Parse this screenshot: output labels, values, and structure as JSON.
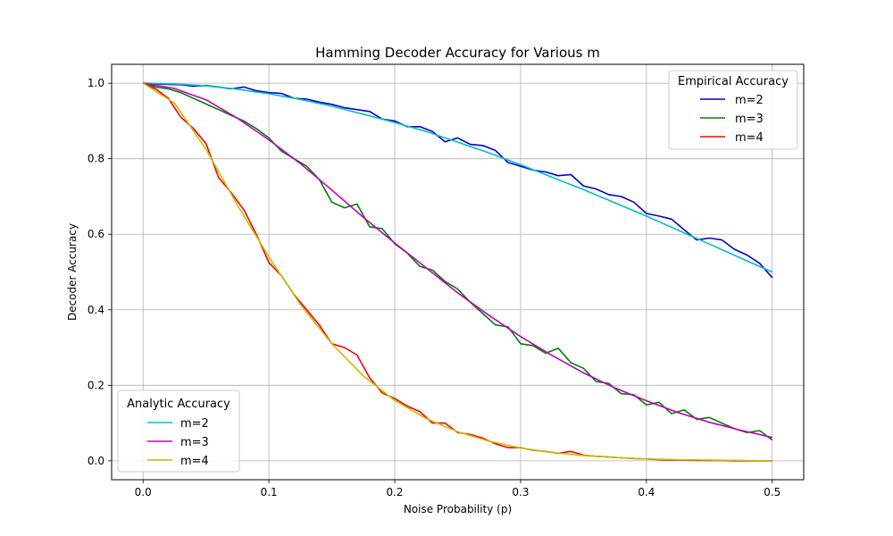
{
  "chart_data": {
    "type": "line",
    "title": "Hamming Decoder Accuracy for Various m",
    "xlabel": "Noise Probability (p)",
    "ylabel": "Decoder Accuracy",
    "xlim": [
      -0.025,
      0.525
    ],
    "ylim": [
      -0.05,
      1.05
    ],
    "x_ticks": [
      0.0,
      0.1,
      0.2,
      0.3,
      0.4,
      0.5
    ],
    "y_ticks": [
      0.0,
      0.2,
      0.4,
      0.6,
      0.8,
      1.0
    ],
    "x_tick_labels": [
      "0.0",
      "0.1",
      "0.2",
      "0.3",
      "0.4",
      "0.5"
    ],
    "y_tick_labels": [
      "0.0",
      "0.2",
      "0.4",
      "0.6",
      "0.8",
      "1.0"
    ],
    "grid": true,
    "legends": [
      {
        "title": "Empirical Accuracy",
        "placement": "upper-right",
        "entries": [
          {
            "label": "m=2",
            "color": "#0000cc"
          },
          {
            "label": "m=3",
            "color": "#008000"
          },
          {
            "label": "m=4",
            "color": "#ff0000"
          }
        ]
      },
      {
        "title": "Analytic Accuracy",
        "placement": "lower-left",
        "entries": [
          {
            "label": "m=2",
            "color": "#00bfbf"
          },
          {
            "label": "m=3",
            "color": "#bf00bf"
          },
          {
            "label": "m=4",
            "color": "#bfbf00"
          }
        ]
      }
    ],
    "series": [
      {
        "label": "m=2",
        "kind": "empirical",
        "color": "#0000cc",
        "x": [
          0.0,
          0.01,
          0.02,
          0.03,
          0.04,
          0.05,
          0.06,
          0.07,
          0.08,
          0.09,
          0.1,
          0.11,
          0.12,
          0.13,
          0.14,
          0.15,
          0.16,
          0.17,
          0.18,
          0.19,
          0.2,
          0.21,
          0.22,
          0.23,
          0.24,
          0.25,
          0.26,
          0.27,
          0.28,
          0.29,
          0.3,
          0.31,
          0.32,
          0.33,
          0.34,
          0.35,
          0.36,
          0.37,
          0.38,
          0.39,
          0.4,
          0.41,
          0.42,
          0.43,
          0.44,
          0.45,
          0.46,
          0.47,
          0.48,
          0.49,
          0.5
        ],
        "y": [
          1.0,
          0.998,
          0.997,
          0.996,
          0.992,
          0.994,
          0.99,
          0.985,
          0.99,
          0.98,
          0.975,
          0.973,
          0.96,
          0.958,
          0.95,
          0.944,
          0.935,
          0.93,
          0.925,
          0.905,
          0.9,
          0.885,
          0.885,
          0.872,
          0.845,
          0.855,
          0.838,
          0.835,
          0.822,
          0.79,
          0.78,
          0.77,
          0.765,
          0.755,
          0.758,
          0.728,
          0.72,
          0.705,
          0.7,
          0.685,
          0.655,
          0.648,
          0.64,
          0.612,
          0.585,
          0.59,
          0.585,
          0.56,
          0.545,
          0.523,
          0.485
        ]
      },
      {
        "label": "m=3",
        "kind": "empirical",
        "color": "#008000",
        "x": [
          0.0,
          0.01,
          0.02,
          0.03,
          0.04,
          0.05,
          0.06,
          0.07,
          0.08,
          0.09,
          0.1,
          0.11,
          0.12,
          0.13,
          0.14,
          0.15,
          0.16,
          0.17,
          0.18,
          0.19,
          0.2,
          0.21,
          0.22,
          0.23,
          0.24,
          0.25,
          0.26,
          0.27,
          0.28,
          0.29,
          0.3,
          0.31,
          0.32,
          0.33,
          0.34,
          0.35,
          0.36,
          0.37,
          0.38,
          0.39,
          0.4,
          0.41,
          0.42,
          0.43,
          0.44,
          0.45,
          0.46,
          0.47,
          0.48,
          0.49,
          0.5
        ],
        "y": [
          1.0,
          0.99,
          0.985,
          0.975,
          0.96,
          0.945,
          0.93,
          0.915,
          0.9,
          0.88,
          0.855,
          0.82,
          0.8,
          0.78,
          0.745,
          0.685,
          0.67,
          0.68,
          0.62,
          0.615,
          0.575,
          0.55,
          0.515,
          0.505,
          0.475,
          0.455,
          0.42,
          0.39,
          0.36,
          0.355,
          0.31,
          0.305,
          0.285,
          0.298,
          0.26,
          0.245,
          0.21,
          0.205,
          0.178,
          0.175,
          0.148,
          0.155,
          0.125,
          0.135,
          0.11,
          0.115,
          0.1,
          0.085,
          0.075,
          0.08,
          0.055
        ]
      },
      {
        "label": "m=4",
        "kind": "empirical",
        "color": "#ff0000",
        "x": [
          0.0,
          0.01,
          0.02,
          0.03,
          0.04,
          0.05,
          0.06,
          0.07,
          0.08,
          0.09,
          0.1,
          0.11,
          0.12,
          0.13,
          0.14,
          0.15,
          0.16,
          0.17,
          0.18,
          0.19,
          0.2,
          0.21,
          0.22,
          0.23,
          0.24,
          0.25,
          0.26,
          0.27,
          0.28,
          0.29,
          0.3,
          0.31,
          0.32,
          0.33,
          0.34,
          0.35,
          0.36,
          0.37,
          0.38,
          0.39,
          0.4,
          0.41,
          0.42,
          0.43,
          0.44,
          0.45,
          0.46,
          0.47,
          0.48,
          0.49,
          0.5
        ],
        "y": [
          1.0,
          0.985,
          0.96,
          0.91,
          0.88,
          0.84,
          0.75,
          0.71,
          0.665,
          0.6,
          0.525,
          0.49,
          0.44,
          0.4,
          0.36,
          0.31,
          0.3,
          0.28,
          0.22,
          0.18,
          0.165,
          0.145,
          0.13,
          0.1,
          0.1,
          0.075,
          0.07,
          0.06,
          0.045,
          0.035,
          0.035,
          0.028,
          0.025,
          0.02,
          0.025,
          0.015,
          0.012,
          0.01,
          0.008,
          0.006,
          0.005,
          0.003,
          0.002,
          0.002,
          0.001,
          0.001,
          0.001,
          0.0,
          0.0,
          0.0,
          0.0
        ]
      },
      {
        "label": "m=2",
        "kind": "analytic",
        "color": "#00bfbf",
        "x": [
          0.0,
          0.025,
          0.05,
          0.075,
          0.1,
          0.125,
          0.15,
          0.175,
          0.2,
          0.225,
          0.25,
          0.275,
          0.3,
          0.325,
          0.35,
          0.375,
          0.4,
          0.425,
          0.45,
          0.475,
          0.5
        ],
        "y": [
          1.0,
          0.998,
          0.993,
          0.984,
          0.972,
          0.957,
          0.939,
          0.918,
          0.896,
          0.872,
          0.844,
          0.815,
          0.784,
          0.751,
          0.718,
          0.683,
          0.648,
          0.611,
          0.574,
          0.537,
          0.5
        ]
      },
      {
        "label": "m=3",
        "kind": "analytic",
        "color": "#bf00bf",
        "x": [
          0.0,
          0.025,
          0.05,
          0.075,
          0.1,
          0.125,
          0.15,
          0.175,
          0.2,
          0.225,
          0.25,
          0.275,
          0.3,
          0.325,
          0.35,
          0.375,
          0.4,
          0.425,
          0.45,
          0.475,
          0.5
        ],
        "y": [
          1.0,
          0.986,
          0.956,
          0.907,
          0.85,
          0.787,
          0.717,
          0.645,
          0.577,
          0.511,
          0.445,
          0.385,
          0.329,
          0.279,
          0.233,
          0.193,
          0.159,
          0.128,
          0.102,
          0.081,
          0.062
        ]
      },
      {
        "label": "m=4",
        "kind": "analytic",
        "color": "#bfbf00",
        "x": [
          0.0,
          0.025,
          0.05,
          0.075,
          0.1,
          0.125,
          0.15,
          0.175,
          0.2,
          0.225,
          0.25,
          0.275,
          0.3,
          0.325,
          0.35,
          0.375,
          0.4,
          0.425,
          0.45,
          0.475,
          0.5
        ],
        "y": [
          1.0,
          0.947,
          0.825,
          0.677,
          0.54,
          0.414,
          0.31,
          0.225,
          0.16,
          0.112,
          0.077,
          0.052,
          0.034,
          0.022,
          0.014,
          0.009,
          0.005,
          0.003,
          0.002,
          0.001,
          0.0
        ]
      }
    ]
  }
}
